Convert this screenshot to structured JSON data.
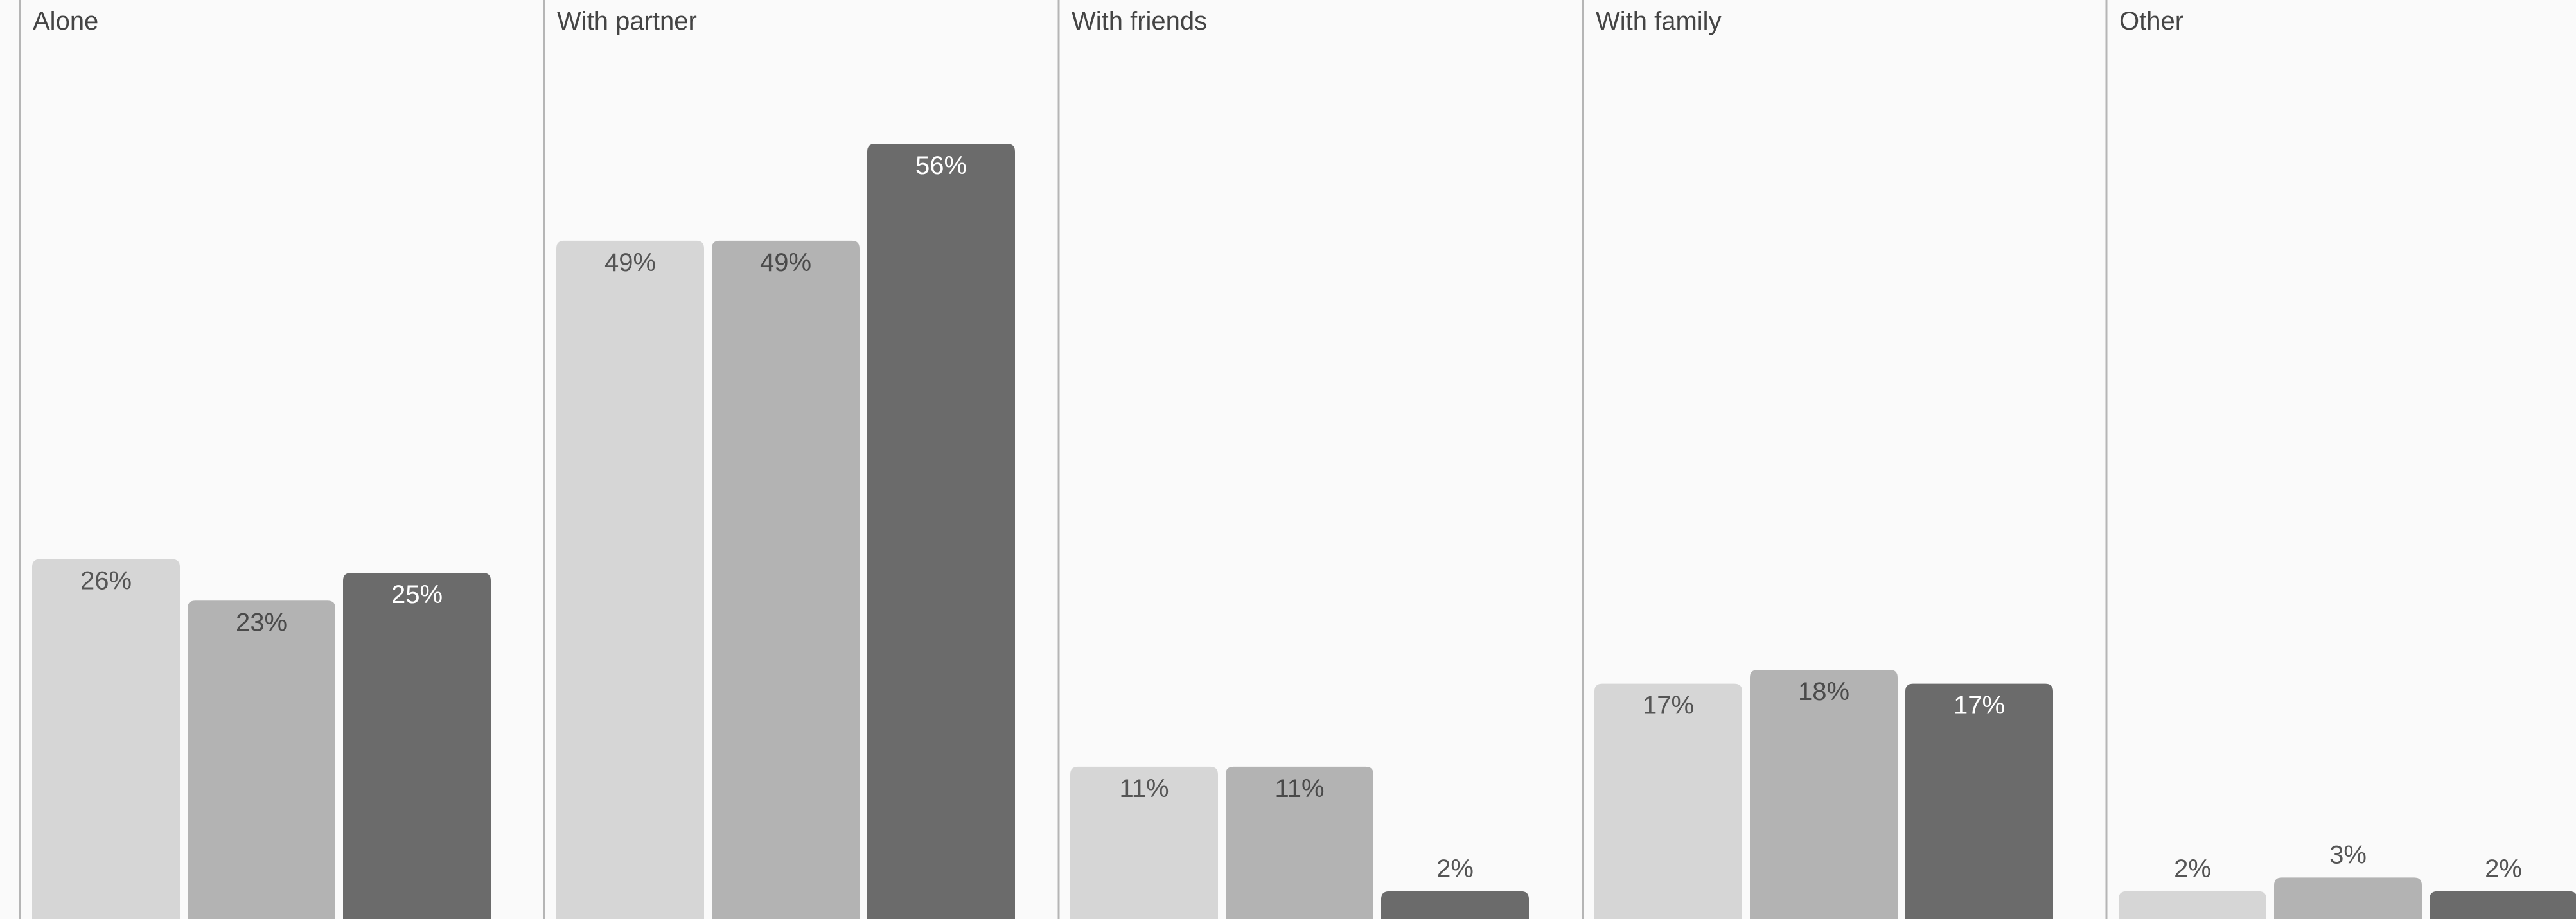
{
  "chart_data": {
    "type": "bar",
    "title": "",
    "xlabel": "",
    "ylabel": "",
    "ylim": [
      0,
      60
    ],
    "grid": false,
    "legend": "none",
    "categories": [
      "Alone",
      "With partner",
      "With friends",
      "With family",
      "Other"
    ],
    "series": [
      {
        "values": [
          26,
          49,
          11,
          17,
          2
        ],
        "color": "#d6d6d6",
        "label_color": "#555555"
      },
      {
        "values": [
          23,
          49,
          11,
          18,
          3
        ],
        "color": "#b3b3b3",
        "label_color": "#4a4a4a"
      },
      {
        "values": [
          25,
          56,
          2,
          17,
          2
        ],
        "color": "#6b6b6b",
        "label_color": "#ffffff"
      }
    ],
    "data_labels": [
      [
        "26%",
        "49%",
        "11%",
        "17%",
        "2%"
      ],
      [
        "23%",
        "49%",
        "11%",
        "18%",
        "3%"
      ],
      [
        "25%",
        "56%",
        "2%",
        "17%",
        "2%"
      ]
    ],
    "outside_label_color": "#555555"
  }
}
